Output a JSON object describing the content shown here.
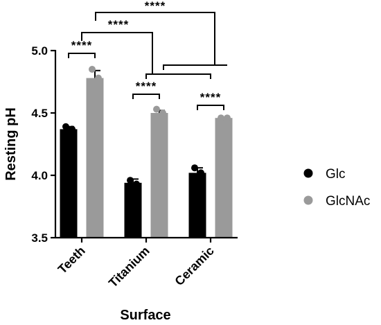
{
  "chart_data": {
    "type": "bar",
    "xlabel": "Surface",
    "ylabel": "Resting pH",
    "ylim": [
      3.5,
      5.0
    ],
    "yticks": [
      3.5,
      4.0,
      4.5,
      5.0
    ],
    "ytick_labels": [
      "3.5",
      "4.0",
      "4.5",
      "5.0"
    ],
    "categories": [
      "Teeth",
      "Titanium",
      "Ceramic"
    ],
    "legend_placement": "right",
    "series": [
      {
        "name": "Glc",
        "color": "#000000",
        "values": [
          4.37,
          3.94,
          4.02
        ],
        "error": [
          0.02,
          0.03,
          0.04
        ],
        "points": [
          [
            4.39,
            4.37
          ],
          [
            3.96,
            3.93
          ],
          [
            4.06,
            4.02
          ]
        ]
      },
      {
        "name": "GlcNAc",
        "color": "#9a9a9a",
        "values": [
          4.78,
          4.5,
          4.46
        ],
        "error": [
          0.06,
          0.02,
          0.005
        ],
        "points": [
          [
            4.85,
            4.78
          ],
          [
            4.53,
            4.5
          ],
          [
            4.46,
            4.46
          ]
        ]
      }
    ],
    "significance": [
      {
        "label": "****",
        "between": "Teeth Glc vs Teeth GlcNAc"
      },
      {
        "label": "****",
        "between": "Titanium Glc vs Titanium GlcNAc"
      },
      {
        "label": "****",
        "between": "Ceramic Glc vs Ceramic GlcNAc"
      },
      {
        "label": "****",
        "between": "Teeth vs Titanium"
      },
      {
        "label": "****",
        "between": "Teeth vs Ceramic"
      }
    ]
  }
}
